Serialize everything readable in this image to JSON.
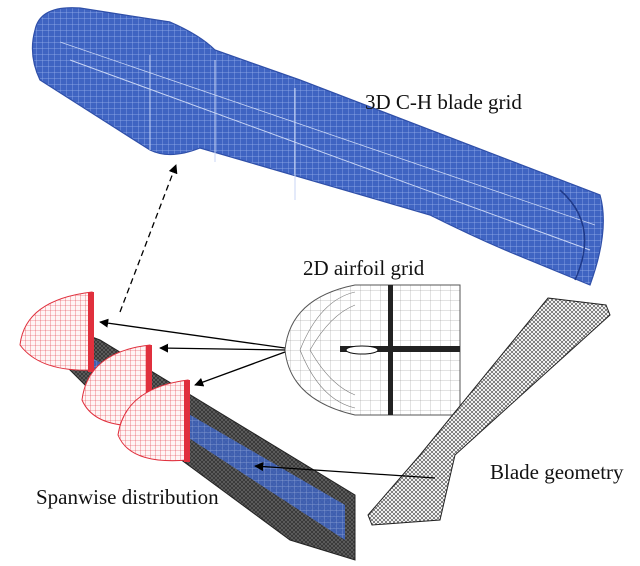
{
  "labels": {
    "grid_3d": "3D C-H blade grid",
    "airfoil_2d": "2D airfoil grid",
    "spanwise": "Spanwise distribution",
    "blade_geometry": "Blade geometry"
  },
  "colors": {
    "blue_grid": "#3f64c2",
    "blue_line": "#8aa6e6",
    "red_grid": "#e0303d",
    "dark_mesh": "#2a2a2a",
    "arrow": "#000000"
  },
  "icons": [
    "arrow-head"
  ]
}
